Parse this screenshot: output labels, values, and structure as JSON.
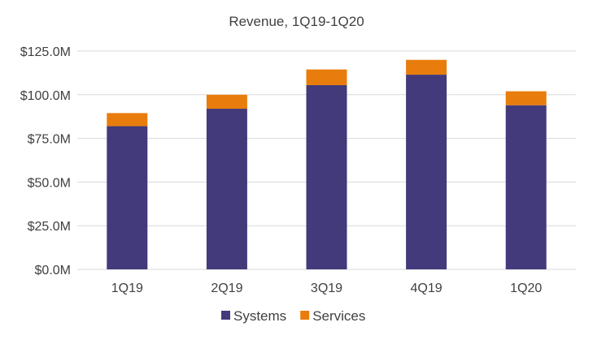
{
  "chart_data": {
    "type": "bar",
    "stacked": true,
    "title": "Revenue, 1Q19-1Q20",
    "categories": [
      "1Q19",
      "2Q19",
      "3Q19",
      "4Q19",
      "1Q20"
    ],
    "series": [
      {
        "name": "Systems",
        "color": "#423a7b",
        "values": [
          82,
          92,
          105.5,
          111.5,
          94
        ]
      },
      {
        "name": "Services",
        "color": "#e87d0d",
        "values": [
          7.5,
          8,
          9,
          8.5,
          8
        ]
      }
    ],
    "ylim": [
      0,
      125
    ],
    "yticks": [
      0,
      25,
      50,
      75,
      100,
      125
    ],
    "ytick_labels": [
      "$0.0M",
      "$25.0M",
      "$50.0M",
      "$75.0M",
      "$100.0M",
      "$125.0M"
    ],
    "grid": true,
    "legend": "bottom",
    "xlabel": "",
    "ylabel": ""
  }
}
